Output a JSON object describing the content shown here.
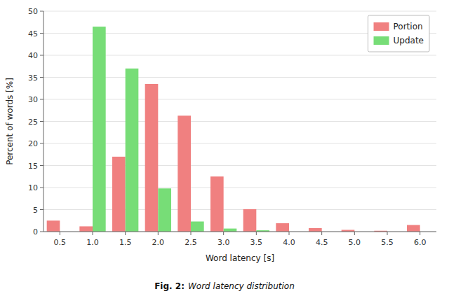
{
  "chart_data": {
    "type": "bar",
    "xlabel": "Word latency [s]",
    "ylabel": "Percent of words [%]",
    "x": [
      0.5,
      1.0,
      1.5,
      2.0,
      2.5,
      3.0,
      3.5,
      4.0,
      4.5,
      5.0,
      5.5,
      6.0
    ],
    "series": [
      {
        "name": "Portion",
        "color": "#f08080",
        "values": [
          2.5,
          1.2,
          17.0,
          33.5,
          26.3,
          12.5,
          5.1,
          1.9,
          0.8,
          0.4,
          0.2,
          1.5
        ]
      },
      {
        "name": "Update",
        "color": "#77dd77",
        "values": [
          0.0,
          46.5,
          37.0,
          9.8,
          2.3,
          0.7,
          0.3,
          0.0,
          0.0,
          0.0,
          0.0,
          0.0
        ]
      }
    ],
    "xlim": [
      0.25,
      6.25
    ],
    "ylim": [
      0,
      50
    ],
    "xticks": [
      0.5,
      {
        "value": 1.0,
        "label": "1.0"
      },
      1.5,
      {
        "value": 2.0,
        "label": "2.0"
      },
      2.5,
      {
        "value": 3.0,
        "label": "3.0"
      },
      3.5,
      {
        "value": 4.0,
        "label": "4.0"
      },
      4.5,
      {
        "value": 5.0,
        "label": "5.0"
      },
      5.5,
      {
        "value": 6.0,
        "label": "6.0"
      }
    ],
    "yticks": [
      0,
      5,
      10,
      15,
      20,
      25,
      30,
      35,
      40,
      45,
      50
    ],
    "grid": true,
    "legend": "upper right",
    "caption": [
      "Fig. 2:",
      "Word latency distribution"
    ]
  }
}
